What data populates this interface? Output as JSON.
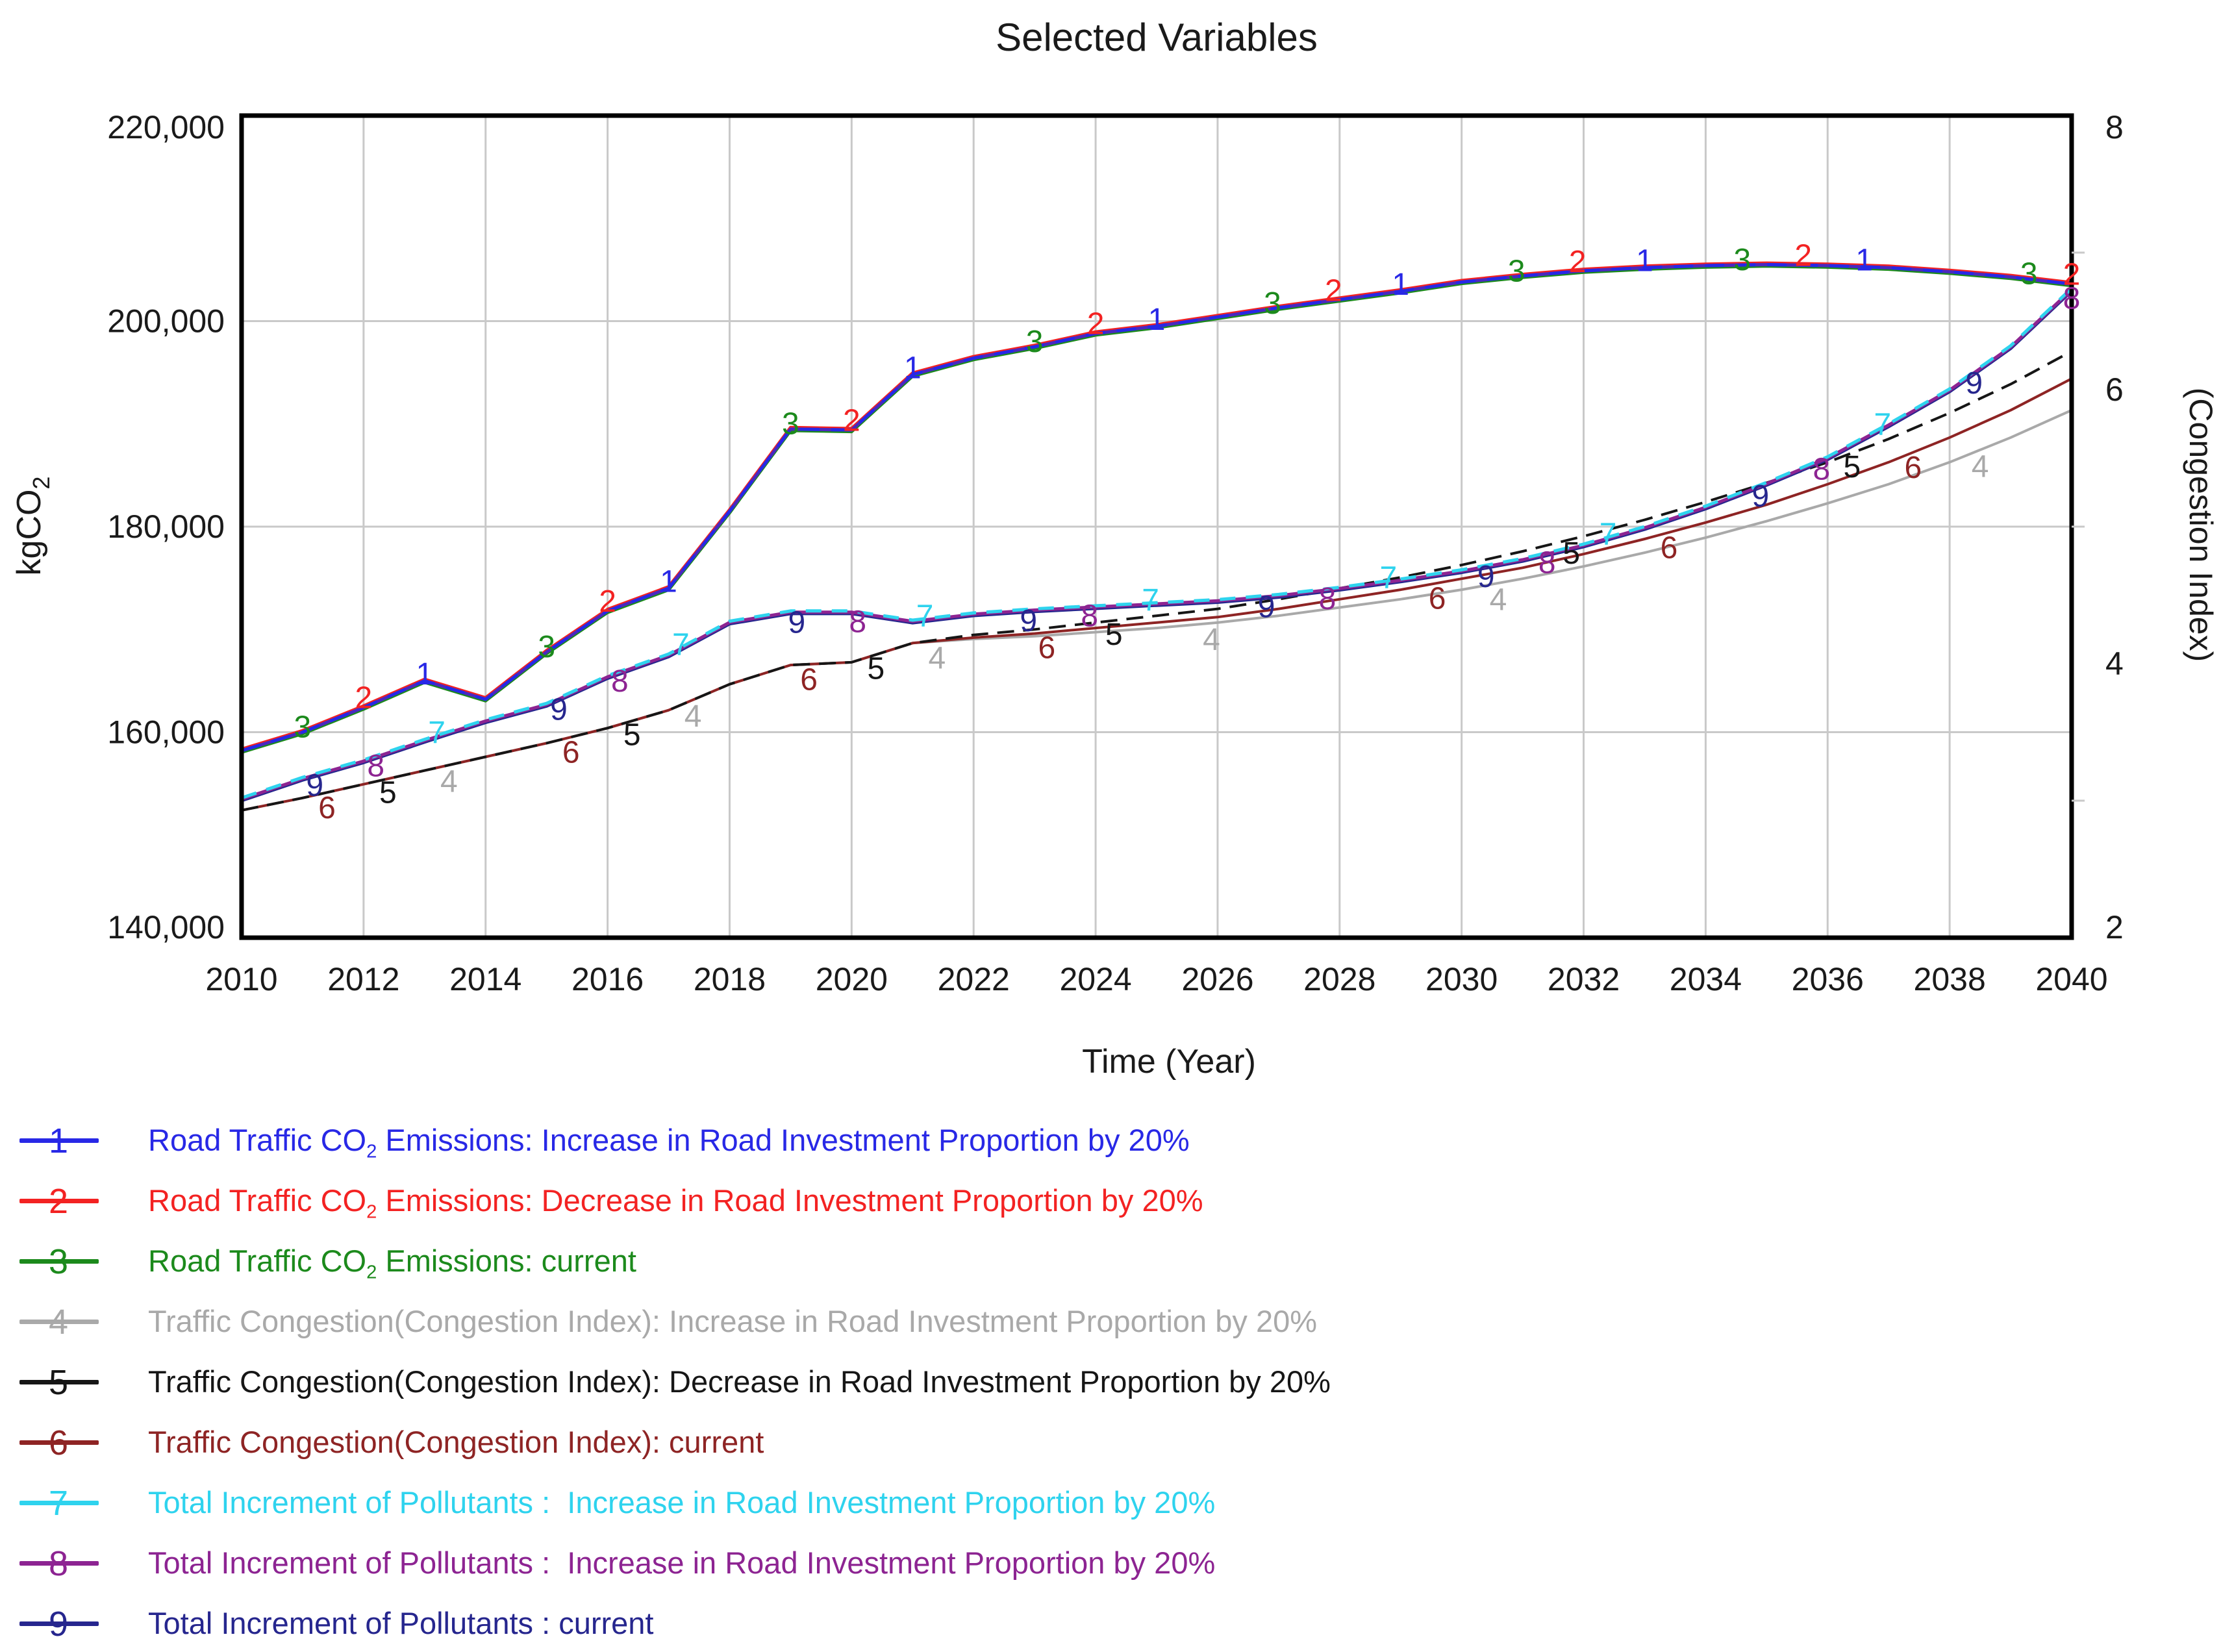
{
  "title": "Selected Variables",
  "axes": {
    "y_left": {
      "label_pre": "kgCO",
      "label_sub": "2",
      "ticks": [
        {
          "v": 220000,
          "t": "220,000"
        },
        {
          "v": 200000,
          "t": "200,000"
        },
        {
          "v": 180000,
          "t": "180,000"
        },
        {
          "v": 160000,
          "t": "160,000"
        },
        {
          "v": 140000,
          "t": "140,000"
        }
      ]
    },
    "y_right": {
      "label": "(Congestion Index)",
      "ticks": [
        {
          "v": 8,
          "t": "8"
        },
        {
          "v": 6,
          "t": "6"
        },
        {
          "v": 4,
          "t": "4"
        },
        {
          "v": 2,
          "t": "2"
        }
      ],
      "minor_ticks": [
        3,
        5,
        7
      ]
    },
    "x": {
      "label": "Time (Year)",
      "ticks": [
        "2010",
        "2012",
        "2014",
        "2016",
        "2018",
        "2020",
        "2022",
        "2024",
        "2026",
        "2028",
        "2030",
        "2032",
        "2034",
        "2036",
        "2038",
        "2040"
      ]
    }
  },
  "chart_data": {
    "type": "line",
    "x_range": [
      2010,
      2040
    ],
    "left_range": [
      140000,
      220000
    ],
    "right_range": [
      2,
      8
    ],
    "grid": true,
    "x": [
      2010,
      2011,
      2012,
      2013,
      2014,
      2015,
      2016,
      2017,
      2018,
      2019,
      2020,
      2021,
      2022,
      2023,
      2024,
      2025,
      2026,
      2027,
      2028,
      2029,
      2030,
      2031,
      2032,
      2033,
      2034,
      2035,
      2036,
      2037,
      2038,
      2039,
      2040
    ],
    "series": [
      {
        "id": "1",
        "number": "1",
        "axis": "left",
        "color": "#2828e6",
        "name": "Road Traffic CO2 Emissions: Increase in Road Investment Proportion by 20%",
        "values": [
          158200,
          160000,
          162400,
          165000,
          163200,
          167800,
          171800,
          174000,
          181500,
          189500,
          189400,
          194800,
          196400,
          197500,
          198800,
          199500,
          200400,
          201300,
          202100,
          202900,
          203800,
          204400,
          204900,
          205200,
          205400,
          205500,
          205400,
          205200,
          204800,
          204300,
          203600
        ],
        "marker_years": [
          2013,
          2017,
          2021,
          2025,
          2029,
          2033,
          2036.6
        ]
      },
      {
        "id": "2",
        "number": "2",
        "axis": "left",
        "color": "#f32222",
        "name": "Road Traffic CO2 Emissions: Decrease in Road Investment Proportion by 20%",
        "values": [
          158350,
          160150,
          162550,
          165150,
          163350,
          167950,
          171950,
          174150,
          181650,
          189650,
          189550,
          194950,
          196550,
          197650,
          198950,
          199650,
          200550,
          201450,
          202250,
          203050,
          203950,
          204550,
          205050,
          205350,
          205550,
          205650,
          205550,
          205350,
          204950,
          204450,
          203750
        ],
        "marker_years": [
          2012,
          2016,
          2020,
          2024,
          2027.9,
          2031.9,
          2035.6,
          2040
        ]
      },
      {
        "id": "3",
        "number": "3",
        "axis": "left",
        "color": "#1c8a1c",
        "name": "Road Traffic CO2 Emissions: current",
        "values": [
          158050,
          159850,
          162250,
          164850,
          163050,
          167650,
          171650,
          173850,
          181350,
          189350,
          189250,
          194650,
          196250,
          197350,
          198650,
          199350,
          200250,
          201150,
          201950,
          202750,
          203650,
          204250,
          204750,
          205050,
          205250,
          205350,
          205250,
          205050,
          204650,
          204150,
          203450
        ],
        "marker_years": [
          2011,
          2015,
          2019,
          2023,
          2026.9,
          2030.9,
          2034.6,
          2039.3
        ]
      },
      {
        "id": "4",
        "number": "4",
        "axis": "right",
        "color": "#a9a9a9",
        "name": "Traffic Congestion(Congestion Index): Increase in Road Investment Proportion by 20%",
        "values": [
          2.93,
          3.02,
          3.12,
          3.22,
          3.32,
          3.42,
          3.53,
          3.66,
          3.85,
          3.99,
          4.01,
          4.15,
          4.18,
          4.2,
          4.23,
          4.26,
          4.3,
          4.35,
          4.41,
          4.47,
          4.54,
          4.62,
          4.71,
          4.81,
          4.92,
          5.04,
          5.17,
          5.31,
          5.47,
          5.65,
          5.85
        ],
        "marker_years": [
          2013.4,
          2017.4,
          2021.4,
          2025.9,
          2030.6,
          2038.5
        ]
      },
      {
        "id": "5",
        "number": "5",
        "axis": "right",
        "color": "#161616",
        "name": "Traffic Congestion(Congestion Index): Decrease in Road Investment Proportion by 20%",
        "values": [
          2.93,
          3.02,
          3.12,
          3.22,
          3.32,
          3.42,
          3.53,
          3.66,
          3.85,
          3.99,
          4.01,
          4.15,
          4.21,
          4.25,
          4.3,
          4.35,
          4.4,
          4.47,
          4.55,
          4.63,
          4.72,
          4.82,
          4.93,
          5.05,
          5.18,
          5.32,
          5.47,
          5.64,
          5.83,
          6.04,
          6.28
        ],
        "marker_years": [
          2012.4,
          2016.4,
          2020.4,
          2024.3,
          2031.8,
          2036.4
        ]
      },
      {
        "id": "6",
        "number": "6",
        "axis": "right",
        "color": "#8e2424",
        "name": "Traffic Congestion(Congestion Index): current",
        "values": [
          2.93,
          3.02,
          3.12,
          3.22,
          3.32,
          3.42,
          3.53,
          3.66,
          3.85,
          3.99,
          4.01,
          4.15,
          4.19,
          4.22,
          4.26,
          4.3,
          4.34,
          4.4,
          4.47,
          4.54,
          4.62,
          4.7,
          4.8,
          4.91,
          5.03,
          5.16,
          5.31,
          5.47,
          5.65,
          5.85,
          6.08
        ],
        "marker_years": [
          2011.4,
          2015.4,
          2019.3,
          2023.2,
          2029.6,
          2033.4,
          2037.4
        ]
      },
      {
        "id": "7",
        "number": "7",
        "axis": "left",
        "color": "#2ed3ee",
        "name": "Total Increment of Pollutants :  Increase in Road Investment Proportion by 20%",
        "values": [
          153600,
          155600,
          157300,
          159300,
          161200,
          162800,
          165500,
          167600,
          170800,
          171800,
          171800,
          170900,
          171600,
          172000,
          172300,
          172600,
          172900,
          173400,
          174100,
          174900,
          175800,
          176900,
          178300,
          180000,
          182000,
          184300,
          186800,
          190000,
          193400,
          197600,
          203200
        ],
        "marker_years": [
          2013.2,
          2017.2,
          2021.2,
          2024.9,
          2028.8,
          2032.4,
          2036.9
        ]
      },
      {
        "id": "8",
        "number": "8",
        "axis": "left",
        "color": "#8d2492",
        "name": "Total Increment of Pollutants :  Increase in Road Investment Proportion by 20%",
        "values": [
          153480,
          155480,
          157180,
          159180,
          161080,
          162680,
          165380,
          167480,
          170680,
          171680,
          171680,
          170780,
          171480,
          171880,
          172180,
          172480,
          172780,
          173280,
          173980,
          174780,
          175680,
          176780,
          178180,
          179880,
          181880,
          184180,
          186680,
          189880,
          193280,
          197480,
          203080
        ],
        "marker_years": [
          2012.2,
          2016.2,
          2020.1,
          2023.9,
          2027.8,
          2031.4,
          2035.9,
          2040
        ]
      },
      {
        "id": "9",
        "number": "9",
        "axis": "left",
        "color": "#26268e",
        "name": "Total Increment of Pollutants : current",
        "values": [
          153340,
          155340,
          157040,
          159040,
          160940,
          162540,
          165240,
          167340,
          170540,
          171540,
          171540,
          170640,
          171340,
          171740,
          172040,
          172340,
          172640,
          173140,
          173840,
          174640,
          175540,
          176640,
          178040,
          179740,
          181740,
          184040,
          186540,
          189740,
          193140,
          197340,
          202940
        ],
        "marker_years": [
          2011.2,
          2015.2,
          2019.1,
          2022.9,
          2026.8,
          2030.4,
          2034.9,
          2038.4
        ]
      }
    ]
  },
  "legend": {
    "rows": [
      {
        "number": "1",
        "color": "#2828e6",
        "pre": "Road Traffic CO",
        "sub": "2",
        "post": " Emissions: Increase in Road Investment Proportion by 20%"
      },
      {
        "number": "2",
        "color": "#f32222",
        "pre": "Road Traffic CO",
        "sub": "2",
        "post": " Emissions: Decrease in Road Investment Proportion by 20%"
      },
      {
        "number": "3",
        "color": "#1c8a1c",
        "pre": "Road Traffic CO",
        "sub": "2",
        "post": " Emissions: current"
      },
      {
        "number": "4",
        "color": "#a9a9a9",
        "pre": "Traffic Congestion(Congestion Index): Increase in Road Investment Proportion by 20%",
        "sub": "",
        "post": ""
      },
      {
        "number": "5",
        "color": "#161616",
        "pre": "Traffic Congestion(Congestion Index): Decrease in Road Investment Proportion by 20%",
        "sub": "",
        "post": ""
      },
      {
        "number": "6",
        "color": "#8e2424",
        "pre": "Traffic Congestion(Congestion Index): current",
        "sub": "",
        "post": ""
      },
      {
        "number": "7",
        "color": "#2ed3ee",
        "pre": "Total Increment of Pollutants :  Increase in Road Investment Proportion by 20%",
        "sub": "",
        "post": ""
      },
      {
        "number": "8",
        "color": "#8d2492",
        "pre": "Total Increment of Pollutants :  Increase in Road Investment Proportion by 20%",
        "sub": "",
        "post": ""
      },
      {
        "number": "9",
        "color": "#26268e",
        "pre": "Total Increment of Pollutants : current",
        "sub": "",
        "post": ""
      }
    ]
  },
  "colors": {
    "grid": "#c9c9c9",
    "frame": "#000000",
    "text": "#1a1a1a",
    "co2_blend_underlay": "#4a28c0",
    "background": "#ffffff"
  }
}
